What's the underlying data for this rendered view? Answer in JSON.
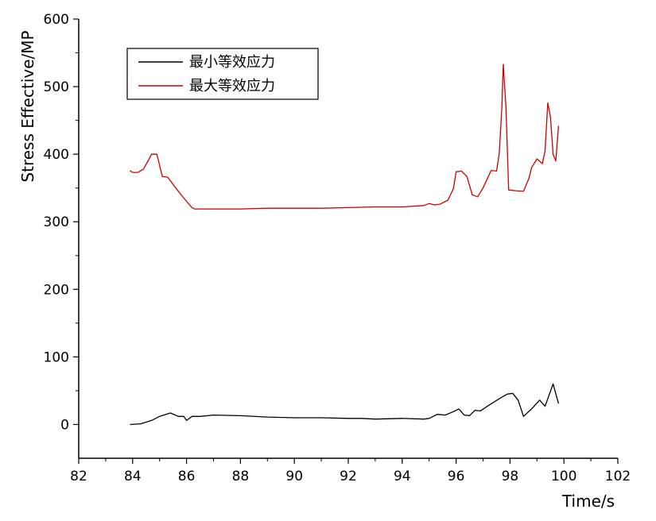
{
  "chart_data": {
    "type": "line",
    "xlabel": "Time/s",
    "ylabel": "Stress Effective/MP",
    "xlim": [
      82,
      102
    ],
    "ylim": [
      -50,
      600
    ],
    "xticks": [
      82,
      84,
      86,
      88,
      90,
      92,
      94,
      96,
      98,
      100,
      102
    ],
    "yticks": [
      0,
      100,
      200,
      300,
      400,
      500,
      600
    ],
    "grid": false,
    "legend_position": "top-left",
    "series": [
      {
        "name": "最小等效应力",
        "color": "#000000",
        "points": [
          [
            83.9,
            0
          ],
          [
            84.3,
            1
          ],
          [
            84.7,
            6
          ],
          [
            85.0,
            12
          ],
          [
            85.4,
            17
          ],
          [
            85.7,
            12
          ],
          [
            85.9,
            12
          ],
          [
            86.0,
            6
          ],
          [
            86.2,
            12
          ],
          [
            86.5,
            12
          ],
          [
            87.0,
            14
          ],
          [
            88.0,
            13
          ],
          [
            89.0,
            11
          ],
          [
            90.0,
            10
          ],
          [
            91.0,
            10
          ],
          [
            92.0,
            9
          ],
          [
            92.5,
            9
          ],
          [
            93.0,
            8
          ],
          [
            94.0,
            9
          ],
          [
            94.8,
            8
          ],
          [
            95.0,
            9
          ],
          [
            95.3,
            15
          ],
          [
            95.6,
            14
          ],
          [
            95.9,
            19
          ],
          [
            96.1,
            23
          ],
          [
            96.3,
            14
          ],
          [
            96.5,
            13
          ],
          [
            96.7,
            21
          ],
          [
            96.9,
            20
          ],
          [
            97.2,
            28
          ],
          [
            97.6,
            38
          ],
          [
            97.9,
            45
          ],
          [
            98.1,
            46
          ],
          [
            98.3,
            36
          ],
          [
            98.5,
            12
          ],
          [
            98.8,
            23
          ],
          [
            99.1,
            36
          ],
          [
            99.3,
            27
          ],
          [
            99.6,
            60
          ],
          [
            99.8,
            31
          ]
        ]
      },
      {
        "name": "最大等效应力",
        "color": "#cc0000",
        "points": [
          [
            83.9,
            376
          ],
          [
            84.0,
            373
          ],
          [
            84.2,
            373
          ],
          [
            84.4,
            378
          ],
          [
            84.6,
            392
          ],
          [
            84.7,
            400
          ],
          [
            84.9,
            400
          ],
          [
            85.1,
            367
          ],
          [
            85.3,
            366
          ],
          [
            85.6,
            350
          ],
          [
            85.9,
            335
          ],
          [
            86.2,
            321
          ],
          [
            86.3,
            319
          ],
          [
            87.0,
            319
          ],
          [
            88.0,
            319
          ],
          [
            89.0,
            320
          ],
          [
            90.0,
            320
          ],
          [
            91.0,
            320
          ],
          [
            92.0,
            321
          ],
          [
            93.0,
            322
          ],
          [
            94.0,
            322
          ],
          [
            94.8,
            324
          ],
          [
            95.0,
            327
          ],
          [
            95.2,
            325
          ],
          [
            95.4,
            326
          ],
          [
            95.7,
            332
          ],
          [
            95.9,
            349
          ],
          [
            96.0,
            374
          ],
          [
            96.2,
            375
          ],
          [
            96.4,
            367
          ],
          [
            96.6,
            340
          ],
          [
            96.8,
            337
          ],
          [
            97.0,
            350
          ],
          [
            97.3,
            376
          ],
          [
            97.5,
            375
          ],
          [
            97.6,
            400
          ],
          [
            97.7,
            470
          ],
          [
            97.75,
            533
          ],
          [
            97.85,
            470
          ],
          [
            97.95,
            347
          ],
          [
            98.2,
            346
          ],
          [
            98.5,
            345
          ],
          [
            98.7,
            364
          ],
          [
            98.8,
            380
          ],
          [
            99.0,
            393
          ],
          [
            99.2,
            386
          ],
          [
            99.3,
            405
          ],
          [
            99.4,
            476
          ],
          [
            99.5,
            455
          ],
          [
            99.6,
            400
          ],
          [
            99.7,
            390
          ],
          [
            99.8,
            442
          ]
        ]
      }
    ]
  }
}
